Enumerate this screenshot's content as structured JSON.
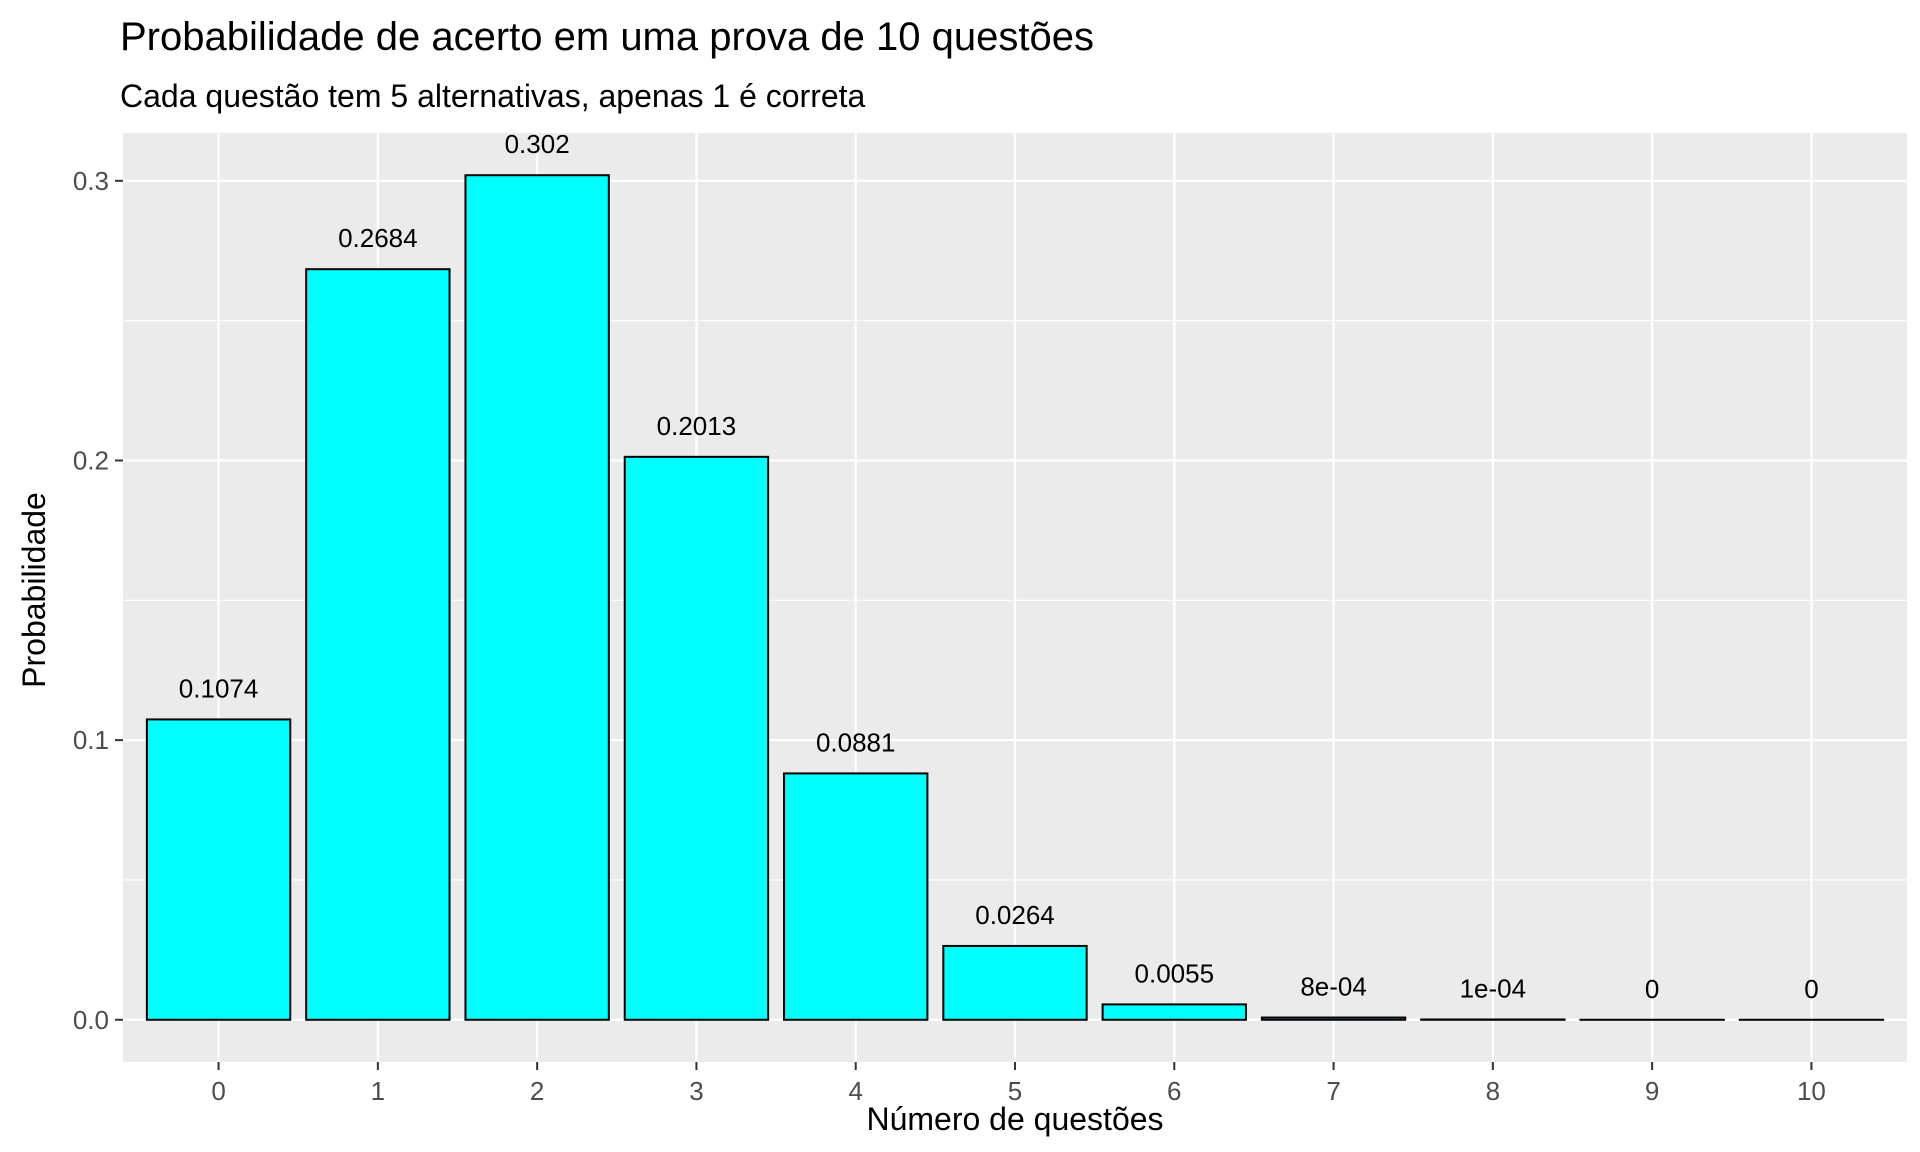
{
  "chart_data": {
    "type": "bar",
    "title": "Probabilidade de acerto em uma prova de 10 questões",
    "subtitle": "Cada questão tem 5 alternativas, apenas 1 é correta",
    "xlabel": "Número de questões",
    "ylabel": "Probabilidade",
    "categories": [
      "0",
      "1",
      "2",
      "3",
      "4",
      "5",
      "6",
      "7",
      "8",
      "9",
      "10"
    ],
    "values": [
      0.1074,
      0.2684,
      0.302,
      0.2013,
      0.0881,
      0.0264,
      0.0055,
      0.0008,
      0.0001,
      0,
      0
    ],
    "data_labels": [
      "0.1074",
      "0.2684",
      "0.302",
      "0.2013",
      "0.0881",
      "0.0264",
      "0.0055",
      "8e-04",
      "1e-04",
      "0",
      "0"
    ],
    "yticks": [
      0.0,
      0.1,
      0.2,
      0.3
    ],
    "ytick_labels": [
      "0.0",
      "0.1",
      "0.2",
      "0.3"
    ],
    "ylim": [
      -0.0151,
      0.3171
    ],
    "grid": true,
    "legend": "none",
    "colors": {
      "bar_fill": "#00FFFF",
      "bar_stroke": "#000000",
      "panel_background": "#EBEBEB",
      "grid_line": "#FFFFFF"
    }
  }
}
